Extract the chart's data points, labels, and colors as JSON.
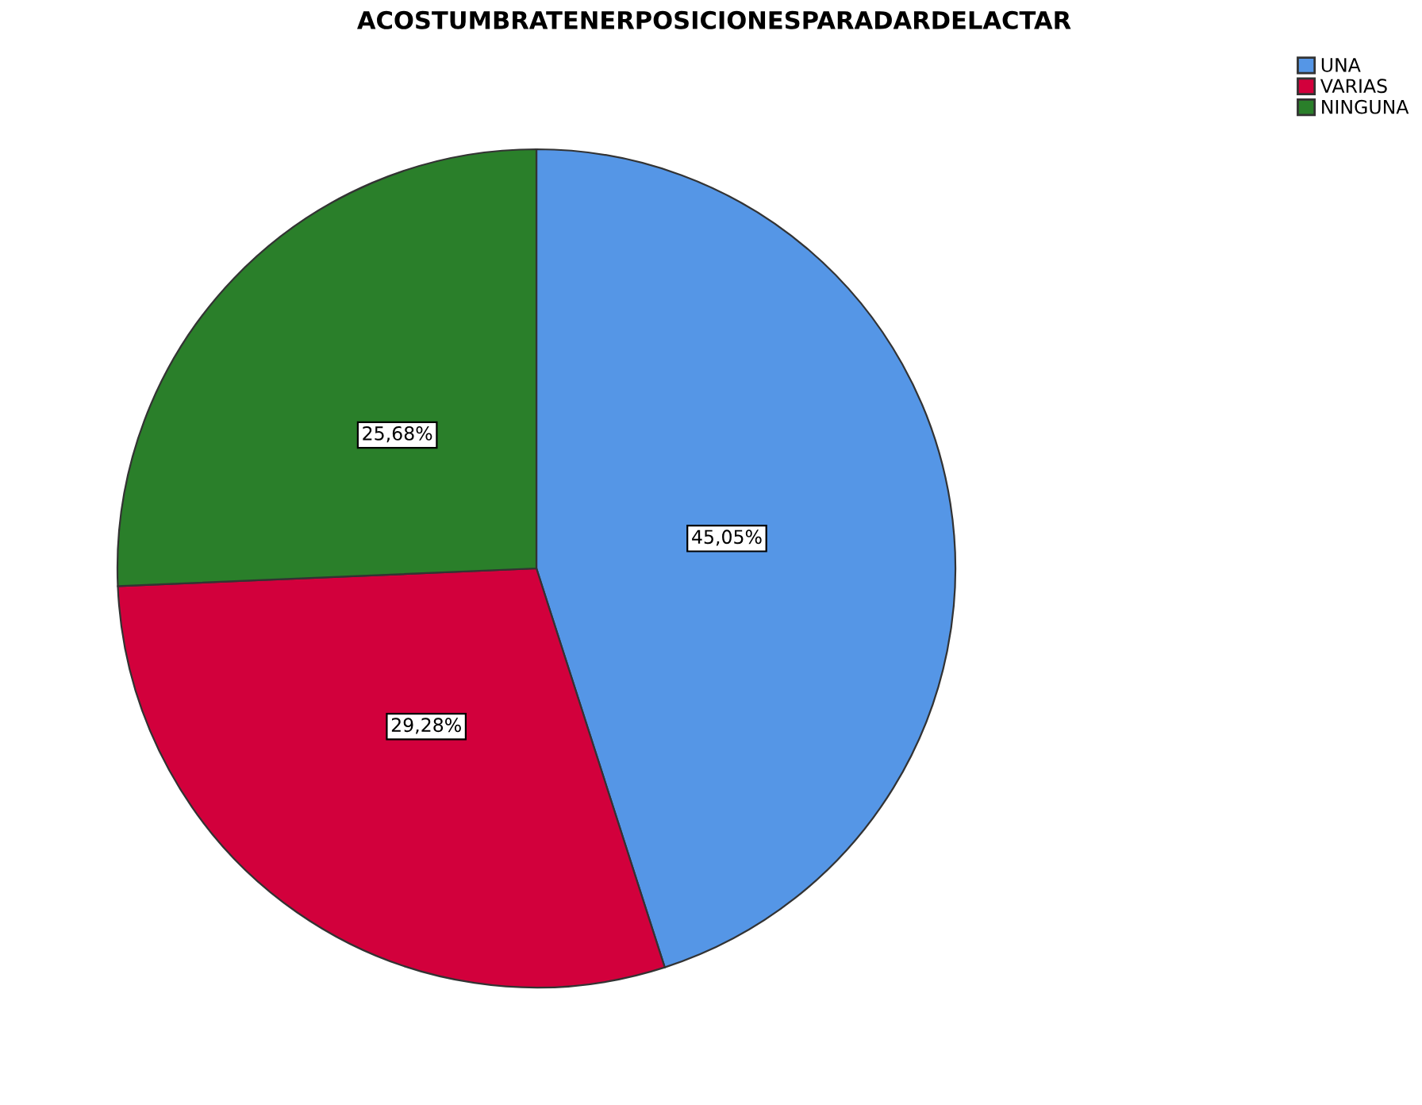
{
  "chart_data": {
    "type": "pie",
    "title": "ACOSTUMBRATENERPOSICIONESPARADARDELACTAR",
    "categories": [
      "UNA",
      "VARIAS",
      "NINGUNA"
    ],
    "values": [
      45.05,
      29.28,
      25.68
    ],
    "colors": [
      "#5596e6",
      "#d2003c",
      "#2a7f2a"
    ],
    "value_labels": [
      "45,05%",
      "29,28%",
      "25,68%"
    ],
    "legend": "top right"
  }
}
